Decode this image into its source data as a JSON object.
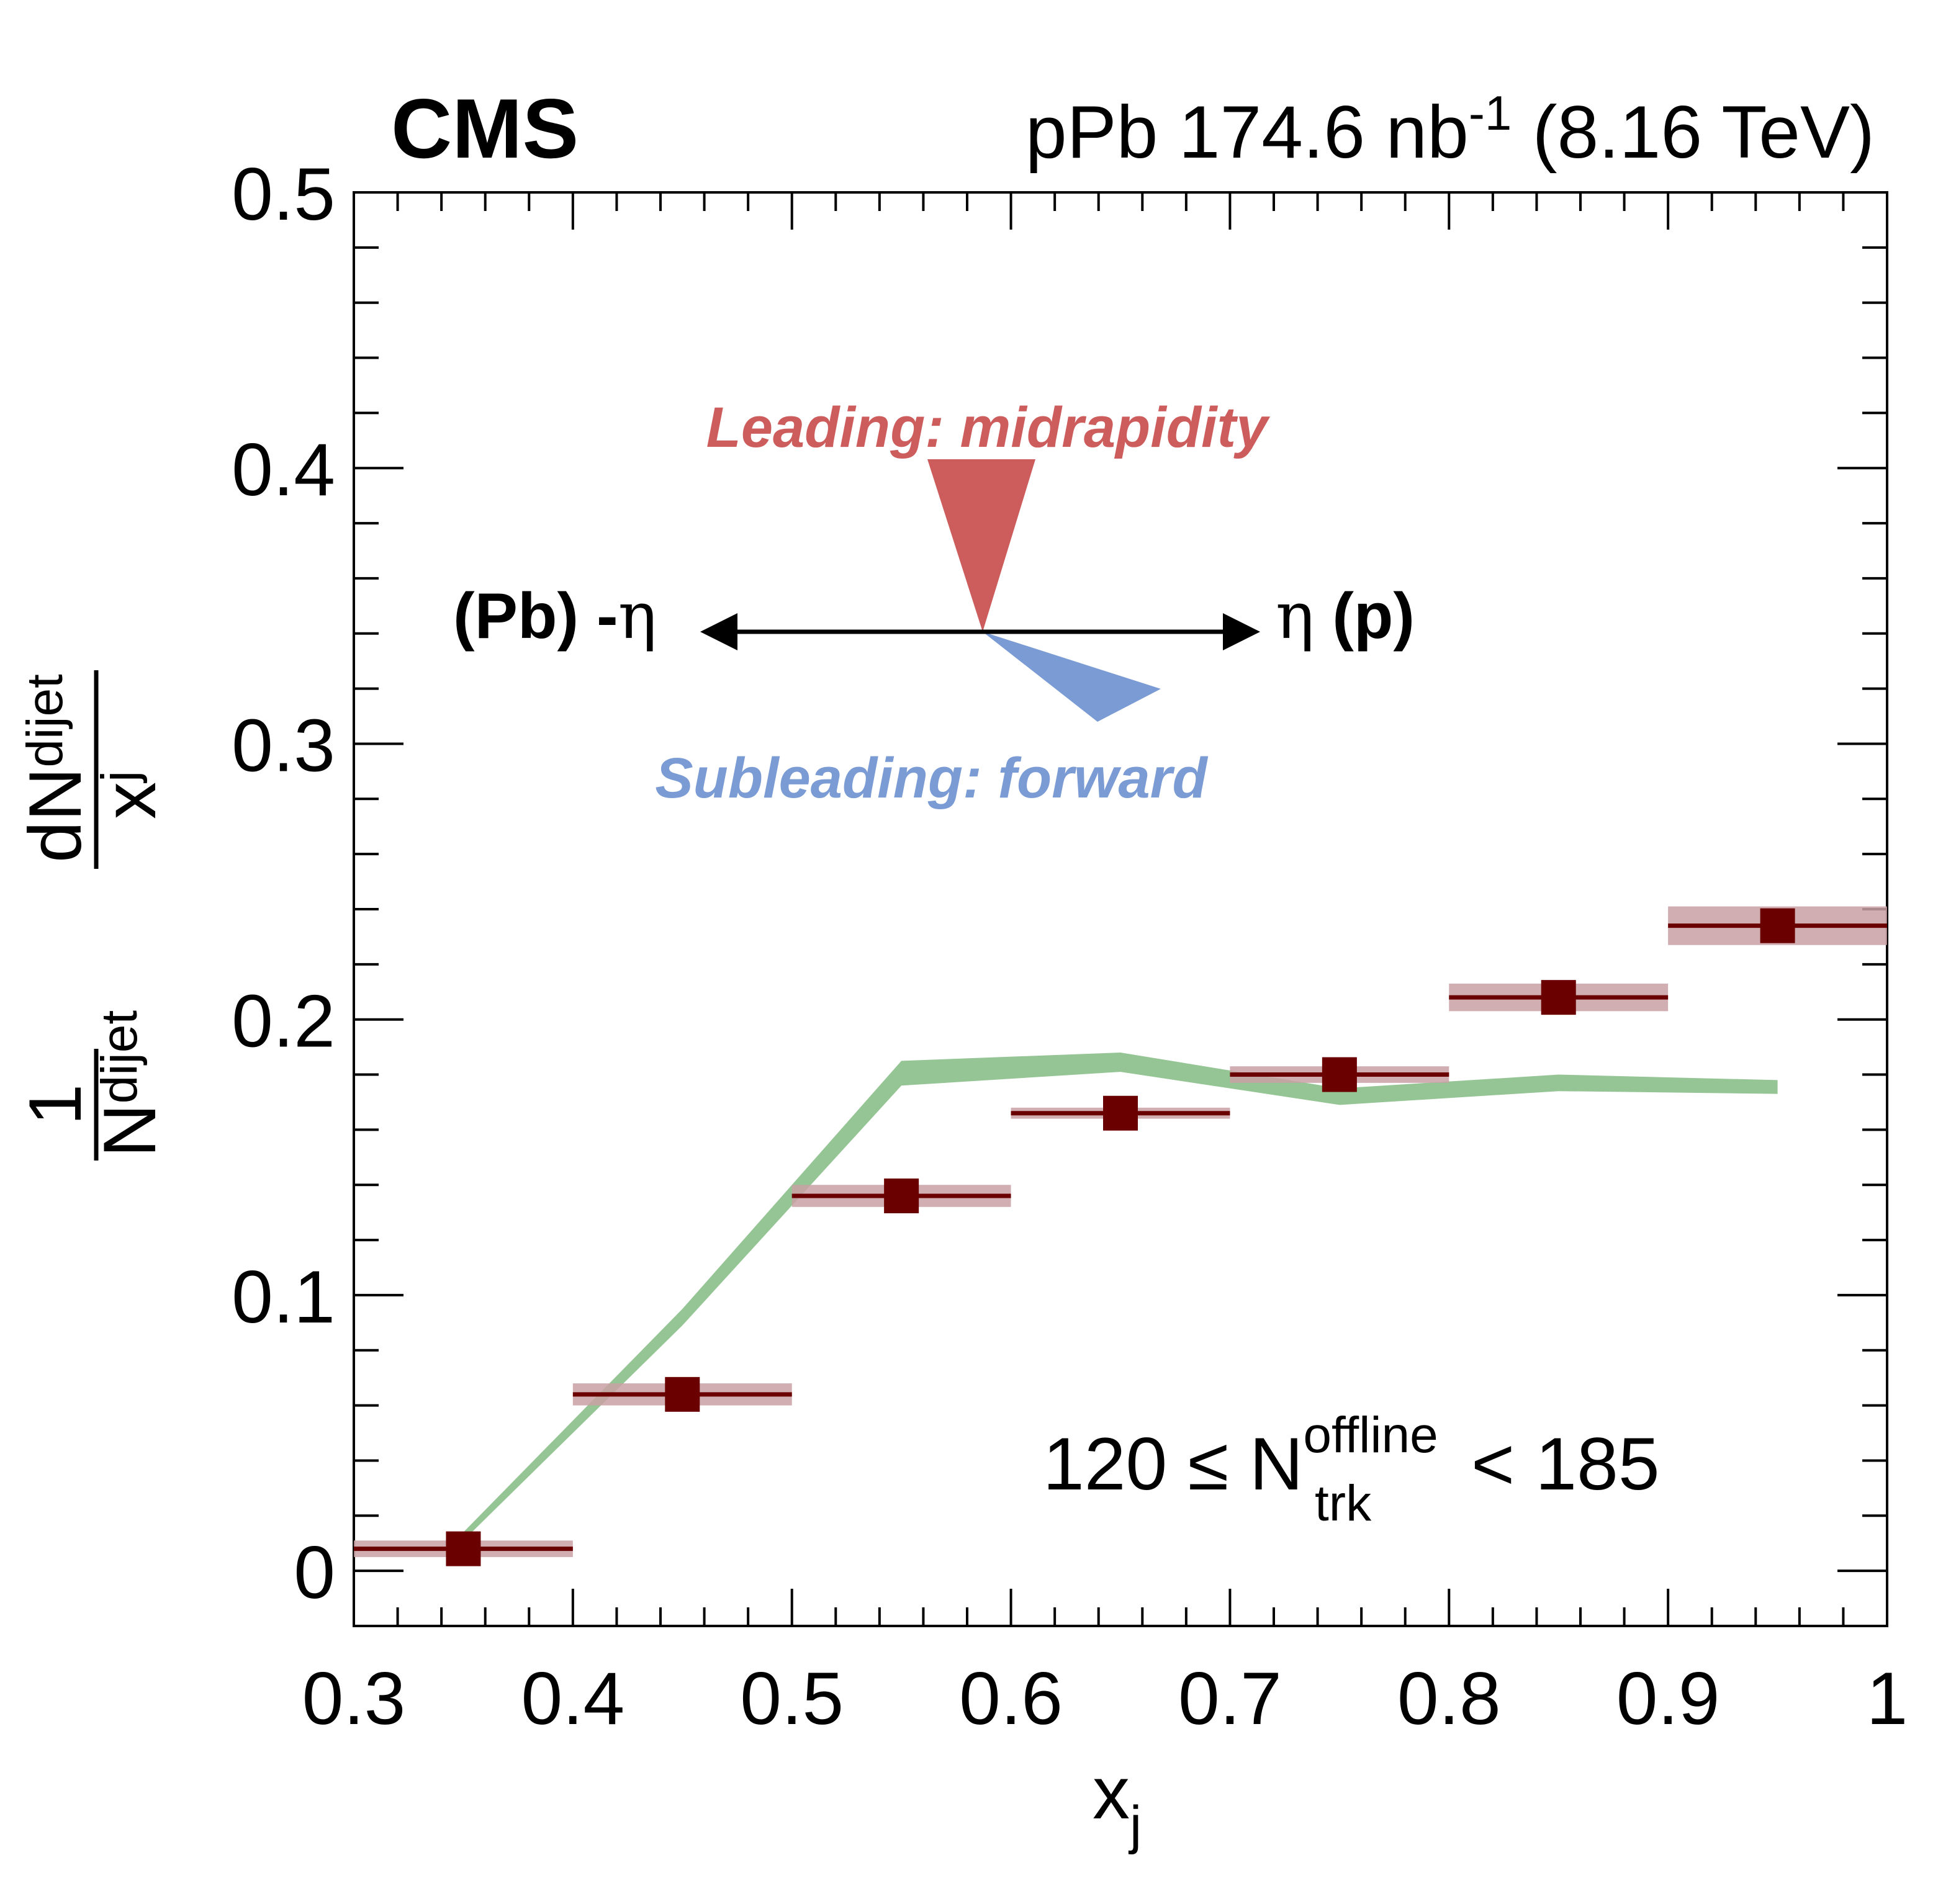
{
  "header": {
    "experiment": "CMS",
    "system": "pPb",
    "lumi_value": "174.6",
    "lumi_unit": "nb",
    "lumi_exponent": "-1",
    "energy": "(8.16 TeV)"
  },
  "annotation": {
    "leading": "Leading: midrapidity",
    "subleading": "Subleading: forward",
    "left_label": "(Pb) -",
    "right_label": "(p)",
    "eta": "η",
    "leading_color": "#cd5c5c",
    "subleading_color": "#7b9bd4",
    "selection_prefix": "120 ≤ N",
    "selection_sup": "offline",
    "selection_sub": "trk",
    "selection_suffix": "< 185"
  },
  "chart_data": {
    "type": "scatter",
    "xlabel": "x",
    "xlabel_sub": "j",
    "ylabel": {
      "numerator_1": "1",
      "denominator_1": "N",
      "denominator_1_sub": "dijet",
      "numerator_2": "dN",
      "numerator_2_sub": "dijet",
      "denominator_2": "x",
      "denominator_2_sub": "j"
    },
    "xlim": [
      0.3,
      1.0
    ],
    "ylim": [
      -0.02,
      0.5
    ],
    "x_ticks": [
      "0.3",
      "0.4",
      "0.5",
      "0.6",
      "0.7",
      "0.8",
      "0.9",
      "1"
    ],
    "y_ticks": [
      "0",
      "0.1",
      "0.2",
      "0.3",
      "0.4",
      "0.5"
    ],
    "x_tick_values": [
      0.3,
      0.4,
      0.5,
      0.6,
      0.7,
      0.8,
      0.9,
      1.0
    ],
    "y_tick_values": [
      0,
      0.1,
      0.2,
      0.3,
      0.4,
      0.5
    ],
    "data": {
      "color": "#6b0000",
      "syst_color": "#c9a0a3",
      "points": [
        {
          "x": 0.35,
          "xlow": 0.3,
          "xhigh": 0.4,
          "y": 0.008,
          "syst": 0.003
        },
        {
          "x": 0.45,
          "xlow": 0.4,
          "xhigh": 0.5,
          "y": 0.064,
          "syst": 0.004
        },
        {
          "x": 0.55,
          "xlow": 0.5,
          "xhigh": 0.6,
          "y": 0.136,
          "syst": 0.004
        },
        {
          "x": 0.65,
          "xlow": 0.6,
          "xhigh": 0.7,
          "y": 0.166,
          "syst": 0.002
        },
        {
          "x": 0.75,
          "xlow": 0.7,
          "xhigh": 0.8,
          "y": 0.18,
          "syst": 0.003
        },
        {
          "x": 0.85,
          "xlow": 0.8,
          "xhigh": 0.9,
          "y": 0.208,
          "syst": 0.005
        },
        {
          "x": 0.95,
          "xlow": 0.9,
          "xhigh": 1.0,
          "y": 0.234,
          "syst": 0.007
        }
      ]
    },
    "model_band": {
      "color": "#95c595",
      "x": [
        0.35,
        0.45,
        0.55,
        0.65,
        0.75,
        0.85,
        0.95
      ],
      "low": [
        0.011,
        0.089,
        0.176,
        0.181,
        0.169,
        0.174,
        0.173
      ],
      "high": [
        0.014,
        0.095,
        0.185,
        0.188,
        0.175,
        0.18,
        0.178
      ]
    }
  }
}
